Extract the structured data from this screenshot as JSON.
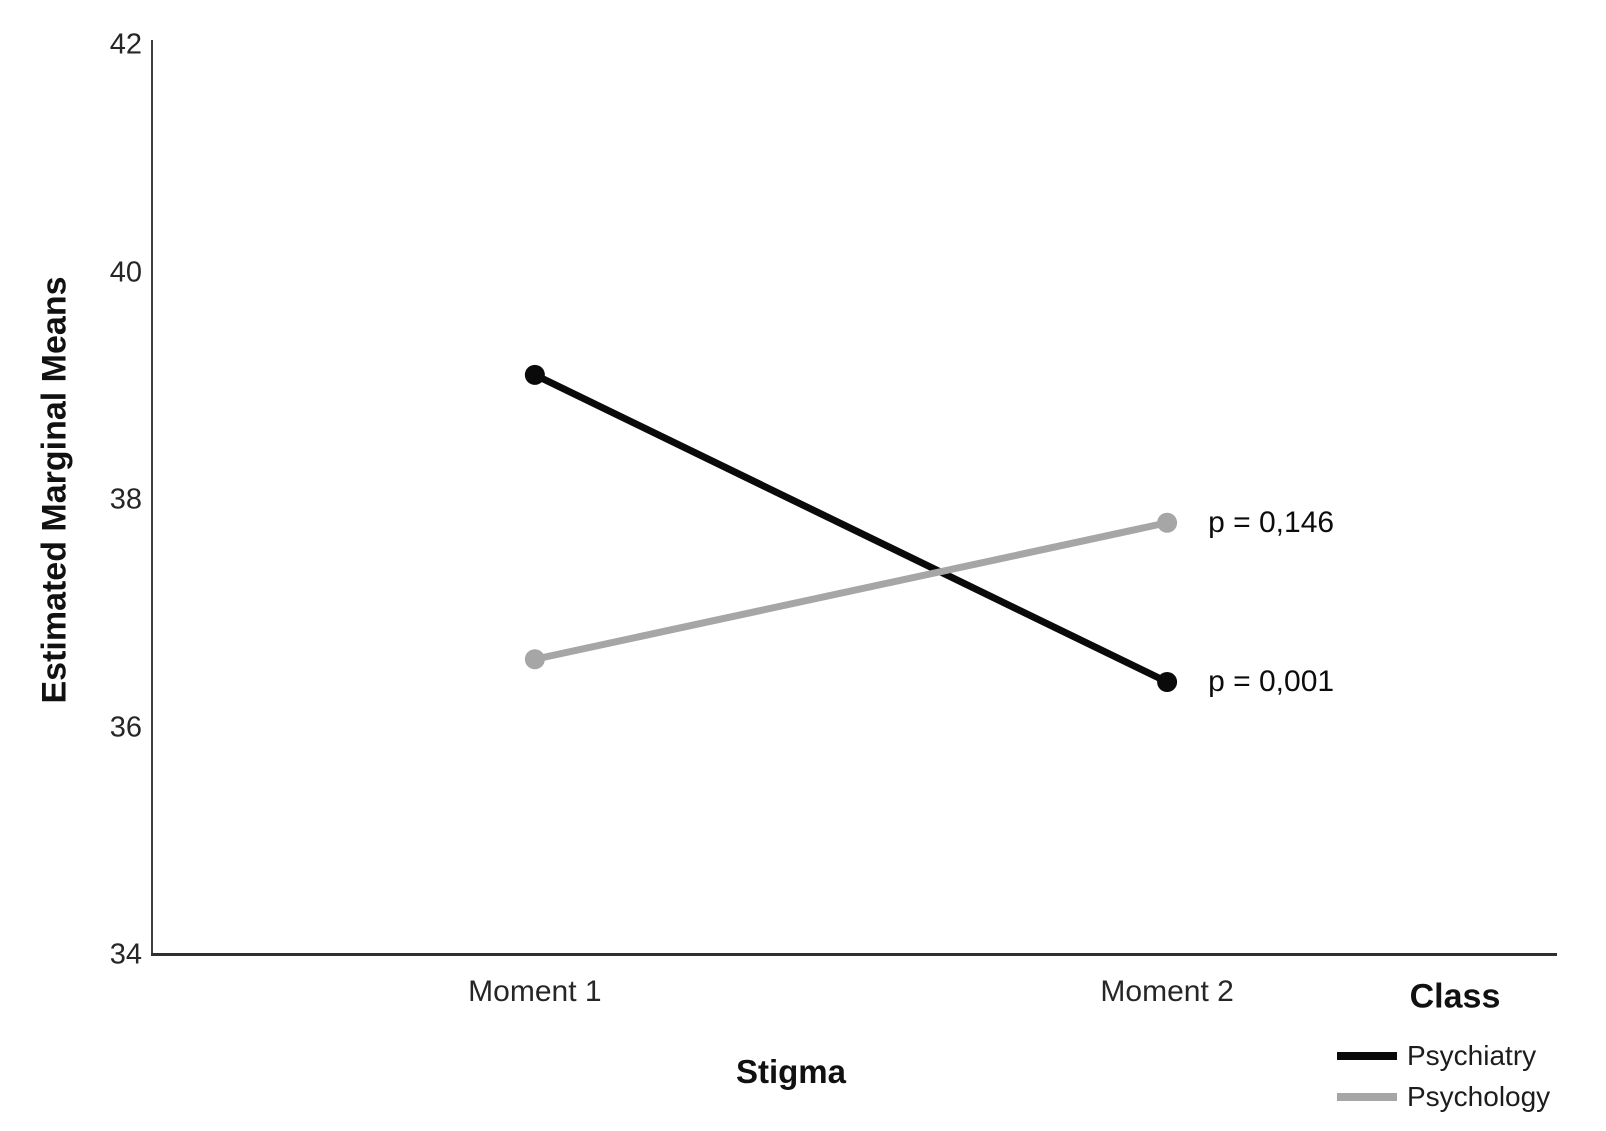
{
  "chart_data": {
    "type": "line",
    "title": "",
    "xlabel": "Stigma",
    "ylabel": "Estimated Marginal Means",
    "categories": [
      "Moment 1",
      "Moment 2"
    ],
    "series": [
      {
        "name": "Psychiatry",
        "color": "#0a0a0a",
        "values": [
          39.1,
          36.4
        ],
        "annotation": "p = 0,001"
      },
      {
        "name": "Psychology",
        "color": "#a6a6a6",
        "values": [
          36.6,
          37.8
        ],
        "annotation": "p = 0,146"
      }
    ],
    "ylim": [
      34,
      42
    ],
    "yticks": [
      42,
      40,
      38,
      36,
      34
    ],
    "ytick_labels": [
      "42",
      "40",
      "38",
      "36",
      "34"
    ],
    "grid": false,
    "legend": {
      "title": "Class",
      "position": "bottom-right",
      "entries": [
        "Psychiatry",
        "Psychology"
      ]
    }
  }
}
